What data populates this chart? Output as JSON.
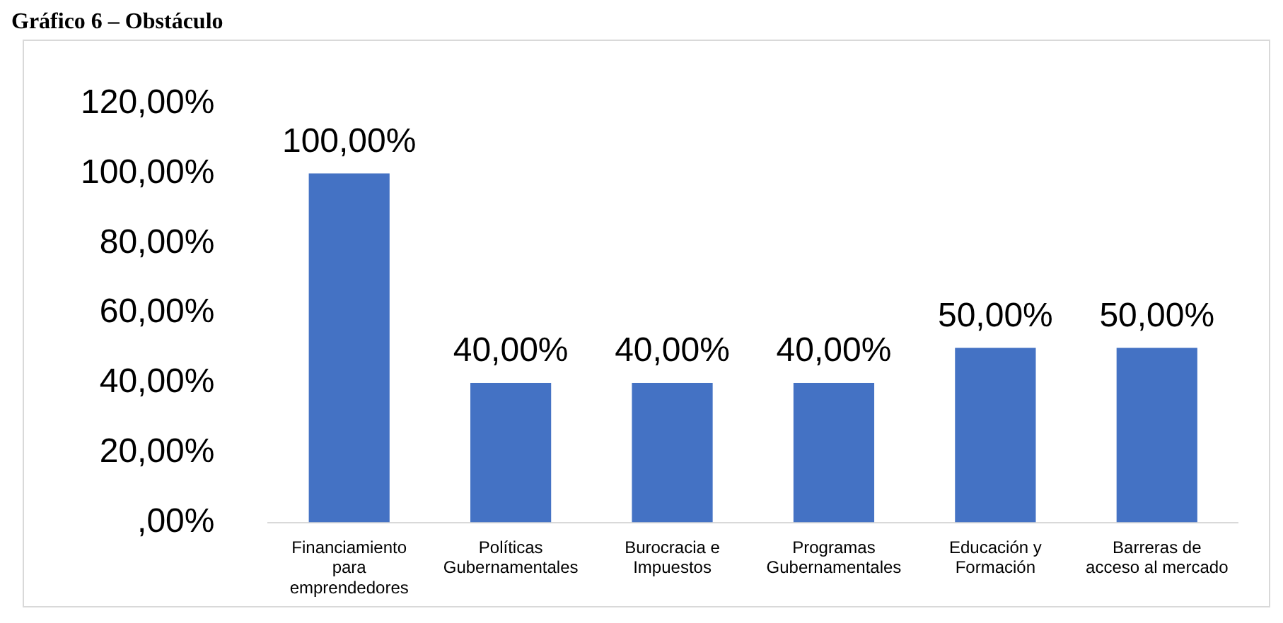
{
  "chart_data": {
    "type": "bar",
    "title": "Gráfico 6 – Obstáculo",
    "categories": [
      "Financiamiento\npara\nemprendedores",
      "Políticas\nGubernamentales",
      "Burocracia e\nImpuestos",
      "Programas\nGubernamentales",
      "Educación y\nFormación",
      "Barreras de\nacceso al mercado"
    ],
    "values": [
      100,
      40,
      40,
      40,
      50,
      50
    ],
    "value_labels": [
      "100,00%",
      "40,00%",
      "40,00%",
      "40,00%",
      "50,00%",
      "50,00%"
    ],
    "color": "#4472c4",
    "ylim": [
      0,
      120
    ],
    "yticks": [
      {
        "value": 0,
        "label": ",00%"
      },
      {
        "value": 20,
        "label": "20,00%"
      },
      {
        "value": 40,
        "label": "40,00%"
      },
      {
        "value": 60,
        "label": "60,00%"
      },
      {
        "value": 80,
        "label": "80,00%"
      },
      {
        "value": 100,
        "label": "100,00%"
      },
      {
        "value": 120,
        "label": "120,00%"
      }
    ],
    "grid": false,
    "legend": false
  }
}
